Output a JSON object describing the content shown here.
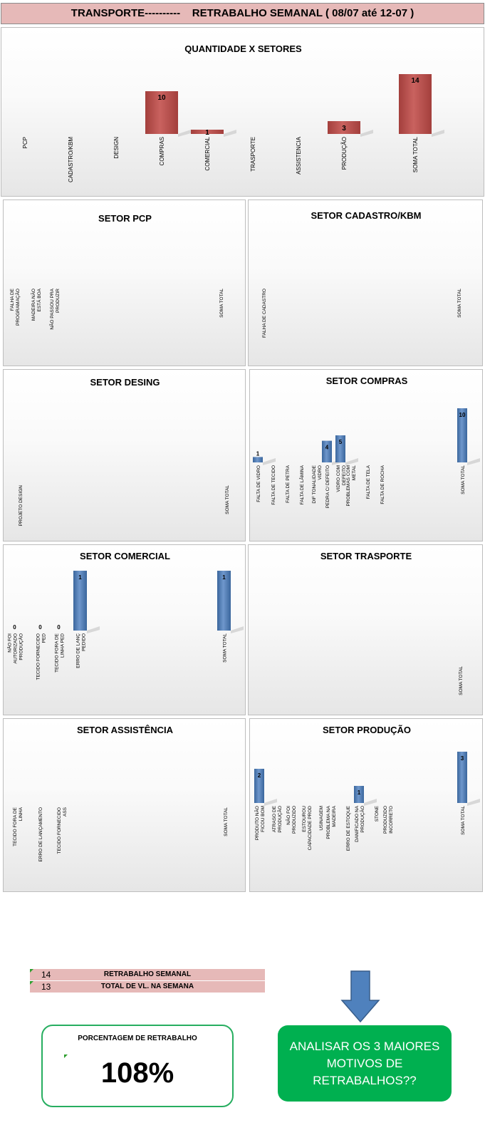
{
  "header": {
    "title": "TRANSPORTE----------    RETRABALHO SEMANAL ( 08/07 até 12-07 )"
  },
  "colors": {
    "header_bg": "#e6b9b8",
    "red_bar": "#c0504d",
    "blue_bar": "#4f81bd",
    "green_box": "#00b050",
    "arrow": "#4f81bd"
  },
  "chart_data": [
    {
      "id": "main",
      "type": "bar",
      "title": "QUANTIDADE X SETORES",
      "categories": [
        "PCP",
        "CADASTRO/KBM",
        "DESIGN",
        "COMPRAS",
        "COMERCIAL",
        "TRASPORTE",
        "ASSISTENCIA",
        "PRODUÇÃO",
        "SOMA TOTAL"
      ],
      "values": [
        null,
        null,
        null,
        10,
        1,
        null,
        null,
        3,
        14
      ],
      "ylim": [
        0,
        14
      ]
    },
    {
      "id": "pcp",
      "type": "bar",
      "title": "SETOR PCP",
      "categories": [
        "FALHA DE PROGRAMAÇÃO",
        "MADEIRA NÃO ESTÁ BOA",
        "NÃO PASSOU PRA PRODUZIR",
        "SOMA TOTAL"
      ],
      "values": [
        null,
        null,
        null,
        null
      ],
      "ylim": [
        0,
        10
      ]
    },
    {
      "id": "cadastro",
      "type": "bar",
      "title": "SETOR CADASTRO/KBM",
      "categories": [
        "FALHA DE CADASTRO",
        "SOMA TOTAL"
      ],
      "values": [
        null,
        null
      ],
      "ylim": [
        0,
        10
      ]
    },
    {
      "id": "desing",
      "type": "bar",
      "title": "SETOR DESING",
      "categories": [
        "PROJETO DESIGN",
        "SOMA TOTAL"
      ],
      "values": [
        null,
        null
      ],
      "ylim": [
        0,
        10
      ]
    },
    {
      "id": "compras",
      "type": "bar",
      "title": "SETOR COMPRAS",
      "categories": [
        "FALTA DE VIDRO",
        "FALTA DE TECIDO",
        "FALTA DE PETRA",
        "FALTA DE LÂMINA",
        "DIF TONALIDADE VIDRO",
        "PEDRA C/ DEFEITO",
        "VIDRO COM DEFEITO",
        "PROBLEMAS COM METAL",
        "FALTA DE TELA",
        "FALTA DE ROCHA",
        "SOMA TOTAL"
      ],
      "values": [
        1,
        null,
        null,
        null,
        null,
        4,
        5,
        null,
        null,
        null,
        10
      ],
      "ylim": [
        0,
        10
      ]
    },
    {
      "id": "comercial",
      "type": "bar",
      "title": "SETOR COMERCIAL",
      "categories": [
        "NÃO FOI AUTORIZADO PRODUÇÃO",
        "TECIDO FORNECIDO PED",
        "TECIDO FORA DE LINHA PED",
        "ERRO DE LANÇ PEDIDO",
        "SOMA TOTAL"
      ],
      "values": [
        0,
        0,
        0,
        1,
        1
      ],
      "ylim": [
        0,
        1
      ]
    },
    {
      "id": "trasporte",
      "type": "bar",
      "title": "SETOR TRASPORTE",
      "categories": [
        "SOMA TOTAL"
      ],
      "values": [
        null
      ],
      "ylim": [
        0,
        10
      ]
    },
    {
      "id": "assistencia",
      "type": "bar",
      "title": "SETOR ASSISTÊNCIA",
      "categories": [
        "TECIDO FORA DE LINHA",
        "ERRO DE LANÇAMENTO",
        "TECIDO FORNECIDO ASS",
        "SOMA TOTAL"
      ],
      "values": [
        null,
        null,
        null,
        null
      ],
      "ylim": [
        0,
        10
      ]
    },
    {
      "id": "producao",
      "type": "bar",
      "title": "SETOR PRODUÇÃO",
      "categories": [
        "PRODUTO NÃO FICOU BOM",
        "ATRASO DE PRODUÇÃO",
        "NÃO FOI PRODUZIDO",
        "ESTOUROU CAPACIDADE PROD",
        "USINAGEM",
        "PROBLEMA NA MADEIRA",
        "ERRO DE ESTOQUE",
        "DANIFICADO NA PRODUÇÃO",
        "STONE",
        "PRODUZIDO INCORRETO",
        "SOMA TOTAL"
      ],
      "values": [
        2,
        null,
        null,
        null,
        null,
        null,
        null,
        1,
        null,
        null,
        3
      ],
      "ylim": [
        0,
        3
      ]
    }
  ],
  "summary": {
    "row1": {
      "value": "14",
      "label": "RETRABALHO SEMANAL"
    },
    "row2": {
      "value": "13",
      "label": "TOTAL DE VL. NA SEMANA"
    }
  },
  "percent": {
    "title": "PORCENTAGEM DE RETRABALHO",
    "value": "108%"
  },
  "action": {
    "text": "ANALISAR OS 3 MAIORES MOTIVOS DE RETRABALHOS??"
  }
}
